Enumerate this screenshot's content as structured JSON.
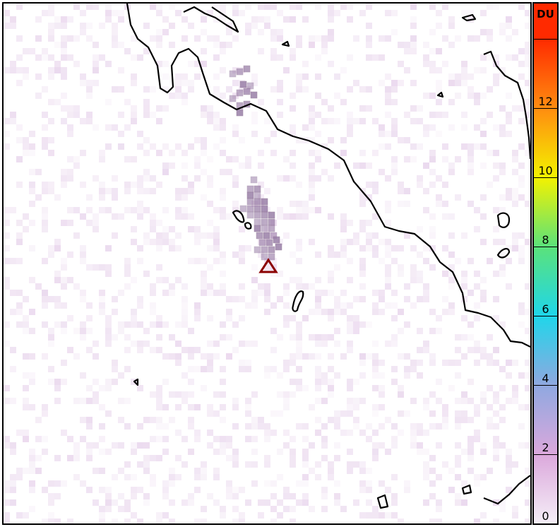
{
  "map": {
    "plume_color": "#9a7fa8",
    "background_noise_color": "#e8d4ec",
    "coastline_color": "#000000",
    "marker": {
      "icon": "volcano-triangle-icon",
      "color": "#8b0000"
    }
  },
  "colorbar": {
    "unit": "DU",
    "range": [
      0,
      14
    ],
    "extend": "max",
    "ticks": [
      {
        "value": 0,
        "label": "0"
      },
      {
        "value": 2,
        "label": "2"
      },
      {
        "value": 4,
        "label": "4"
      },
      {
        "value": 6,
        "label": "6"
      },
      {
        "value": 8,
        "label": "8"
      },
      {
        "value": 10,
        "label": "10"
      },
      {
        "value": 12,
        "label": "12"
      },
      {
        "value": 14,
        "label": ""
      }
    ],
    "bands": [
      "#f5eef7",
      "#dba8dc",
      "#8fa8e0",
      "#1fd6ea",
      "#5be27a",
      "#f4f200",
      "#ff8c10",
      "#ff2a00"
    ]
  }
}
